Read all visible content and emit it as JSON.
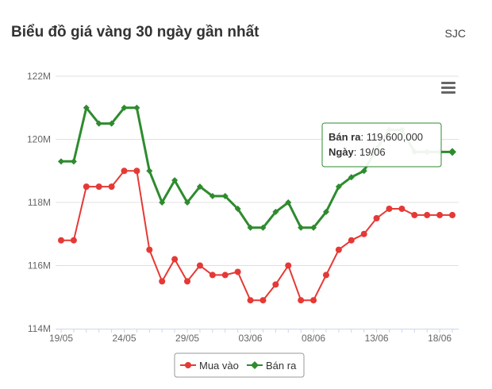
{
  "header": {
    "title": "Biểu đồ giá vàng 30 ngày gần nhất",
    "brand": "SJC"
  },
  "menu": {
    "icon": "hamburger-menu-icon"
  },
  "colors": {
    "buy": "#e53935",
    "sell": "#2e8b2e",
    "tooltip_border": "#2e8b2e"
  },
  "tooltip": {
    "series_label": "Bán ra",
    "series_value": "119,600,000",
    "date_label": "Ngày",
    "date_value": "19/06"
  },
  "chart_data": {
    "type": "line",
    "title": "Biểu đồ giá vàng 30 ngày gần nhất",
    "xlabel": "",
    "ylabel": "",
    "x": [
      "19/05",
      "20/05",
      "21/05",
      "22/05",
      "23/05",
      "24/05",
      "25/05",
      "26/05",
      "27/05",
      "28/05",
      "29/05",
      "30/05",
      "31/05",
      "01/06",
      "02/06",
      "03/06",
      "04/06",
      "05/06",
      "06/06",
      "07/06",
      "08/06",
      "09/06",
      "10/06",
      "11/06",
      "12/06",
      "13/06",
      "14/06",
      "15/06",
      "16/06",
      "17/06",
      "18/06",
      "19/06"
    ],
    "x_tick_labels": [
      "19/05",
      "24/05",
      "29/05",
      "03/06",
      "08/06",
      "13/06",
      "18/06"
    ],
    "y_tick_labels": [
      "114M",
      "116M",
      "118M",
      "120M",
      "122M"
    ],
    "ylim": [
      114,
      122
    ],
    "y_unit": "million VND",
    "grid": true,
    "legend_position": "bottom-center",
    "series": [
      {
        "name": "Mua vào",
        "color": "#e53935",
        "values": [
          116.8,
          116.8,
          118.5,
          118.5,
          118.5,
          119.0,
          119.0,
          116.5,
          115.5,
          116.2,
          115.5,
          116.0,
          115.7,
          115.7,
          115.8,
          114.9,
          114.9,
          115.4,
          116.0,
          114.9,
          114.9,
          115.7,
          116.5,
          116.8,
          117.0,
          117.5,
          117.8,
          117.8,
          117.6,
          117.6,
          117.6,
          117.6
        ]
      },
      {
        "name": "Bán ra",
        "color": "#2e8b2e",
        "values": [
          119.3,
          119.3,
          121.0,
          120.5,
          120.5,
          121.0,
          121.0,
          119.0,
          118.0,
          118.7,
          118.0,
          118.5,
          118.2,
          118.2,
          117.8,
          117.2,
          117.2,
          117.7,
          118.0,
          117.2,
          117.2,
          117.7,
          118.5,
          118.8,
          119.0,
          119.7,
          120.3,
          120.3,
          119.6,
          119.6,
          119.6,
          119.6
        ]
      }
    ]
  }
}
